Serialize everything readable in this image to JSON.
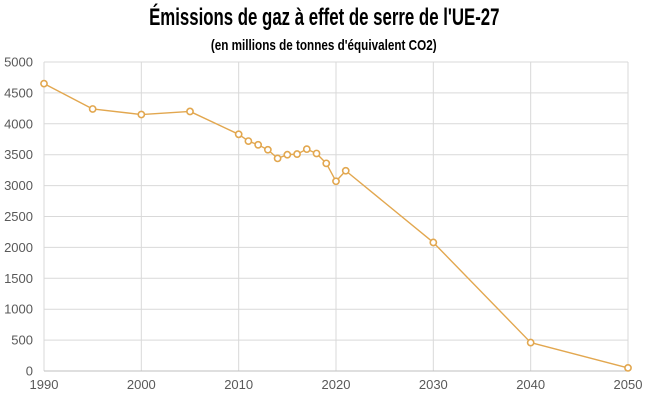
{
  "chart_data": {
    "type": "line",
    "title": "Émissions de gaz à effet de serre de l'UE-27",
    "subtitle": "(en millions de tonnes d'équivalent CO2)",
    "ylabel": "millions de tonnes d'équivalent CO2",
    "xlabel": "",
    "x": [
      1990,
      1995,
      2000,
      2005,
      2010,
      2011,
      2012,
      2013,
      2014,
      2015,
      2016,
      2017,
      2018,
      2019,
      2020,
      2021,
      2030,
      2040,
      2050
    ],
    "values": [
      4650,
      4240,
      4150,
      4200,
      3830,
      3720,
      3660,
      3580,
      3440,
      3500,
      3510,
      3590,
      3520,
      3360,
      3070,
      3240,
      2080,
      460,
      50
    ],
    "series_name": "Émissions de gaz à effet de serre de l'UE-27",
    "x_ticks": [
      "1990",
      "2000",
      "2010",
      "2020",
      "2030",
      "2040",
      "2050"
    ],
    "x_tick_values": [
      1990,
      2000,
      2010,
      2020,
      2030,
      2040,
      2050
    ],
    "y_ticks": [
      "0",
      "500",
      "1000",
      "1500",
      "2000",
      "2500",
      "3000",
      "3500",
      "4000",
      "4500",
      "5000"
    ],
    "y_tick_values": [
      0,
      500,
      1000,
      1500,
      2000,
      2500,
      3000,
      3500,
      4000,
      4500,
      5000
    ],
    "xlim": [
      1990,
      2050
    ],
    "ylim": [
      0,
      5000
    ],
    "grid": true,
    "legend": "none",
    "marker": "open-circle"
  },
  "colors": {
    "line": "#E2A74F",
    "marker_fill": "#FFFFFF",
    "gridline": "#D9D9D9",
    "axis_line": "#BFBFBF",
    "tick_label": "#595959",
    "title": "#000000",
    "background": "#FFFFFF"
  }
}
